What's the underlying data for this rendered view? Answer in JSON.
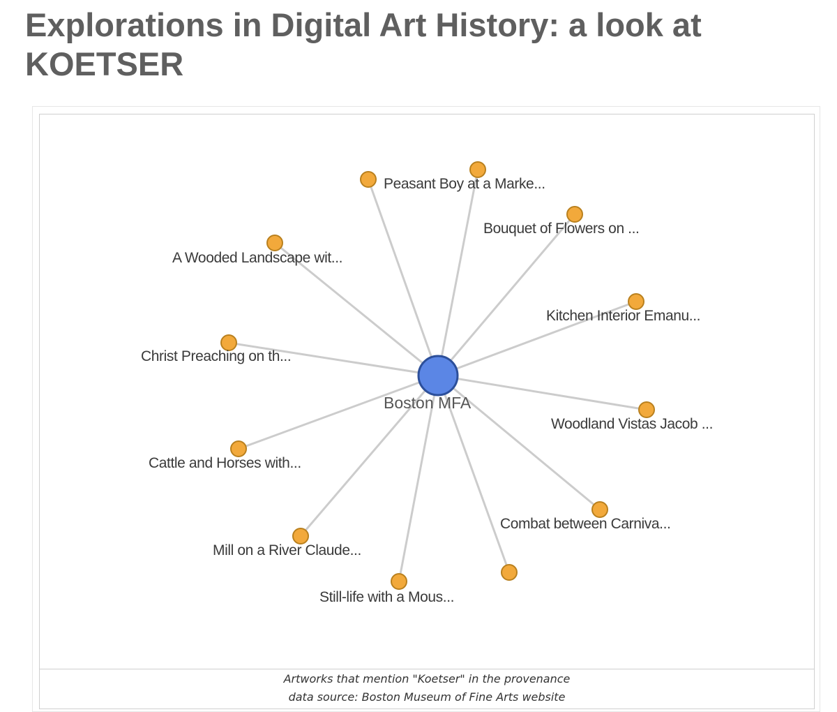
{
  "page": {
    "title": "Explorations in Digital Art History: a look at KOETSER"
  },
  "colors": {
    "hub_fill": "#5b86e5",
    "hub_stroke": "#2c4f9a",
    "leaf_fill": "#f2a93b",
    "leaf_stroke": "#b9801e",
    "edge": "#cccccc"
  },
  "graph": {
    "hub": {
      "label": "Boston MFA"
    },
    "nodes": [
      {
        "label": "Peasant Boy at a Marke..."
      },
      {
        "label": "Peasant Boy at a Marke..."
      },
      {
        "label": "Bouquet of Flowers on ..."
      },
      {
        "label": "A Wooded Landscape wit..."
      },
      {
        "label": "Kitchen Interior Emanu..."
      },
      {
        "label": "Christ Preaching on th..."
      },
      {
        "label": "Woodland Vistas Jacob ..."
      },
      {
        "label": "Cattle and Horses with..."
      },
      {
        "label": "Combat between Carniva..."
      },
      {
        "label": "Mill on a River Claude..."
      },
      {
        "label": "Still-life with a Mous..."
      },
      {
        "label": ""
      }
    ]
  },
  "caption": {
    "line1": "Artworks that mention \"Koetser\" in the provenance",
    "line2": "data source: Boston Museum of Fine Arts website"
  }
}
